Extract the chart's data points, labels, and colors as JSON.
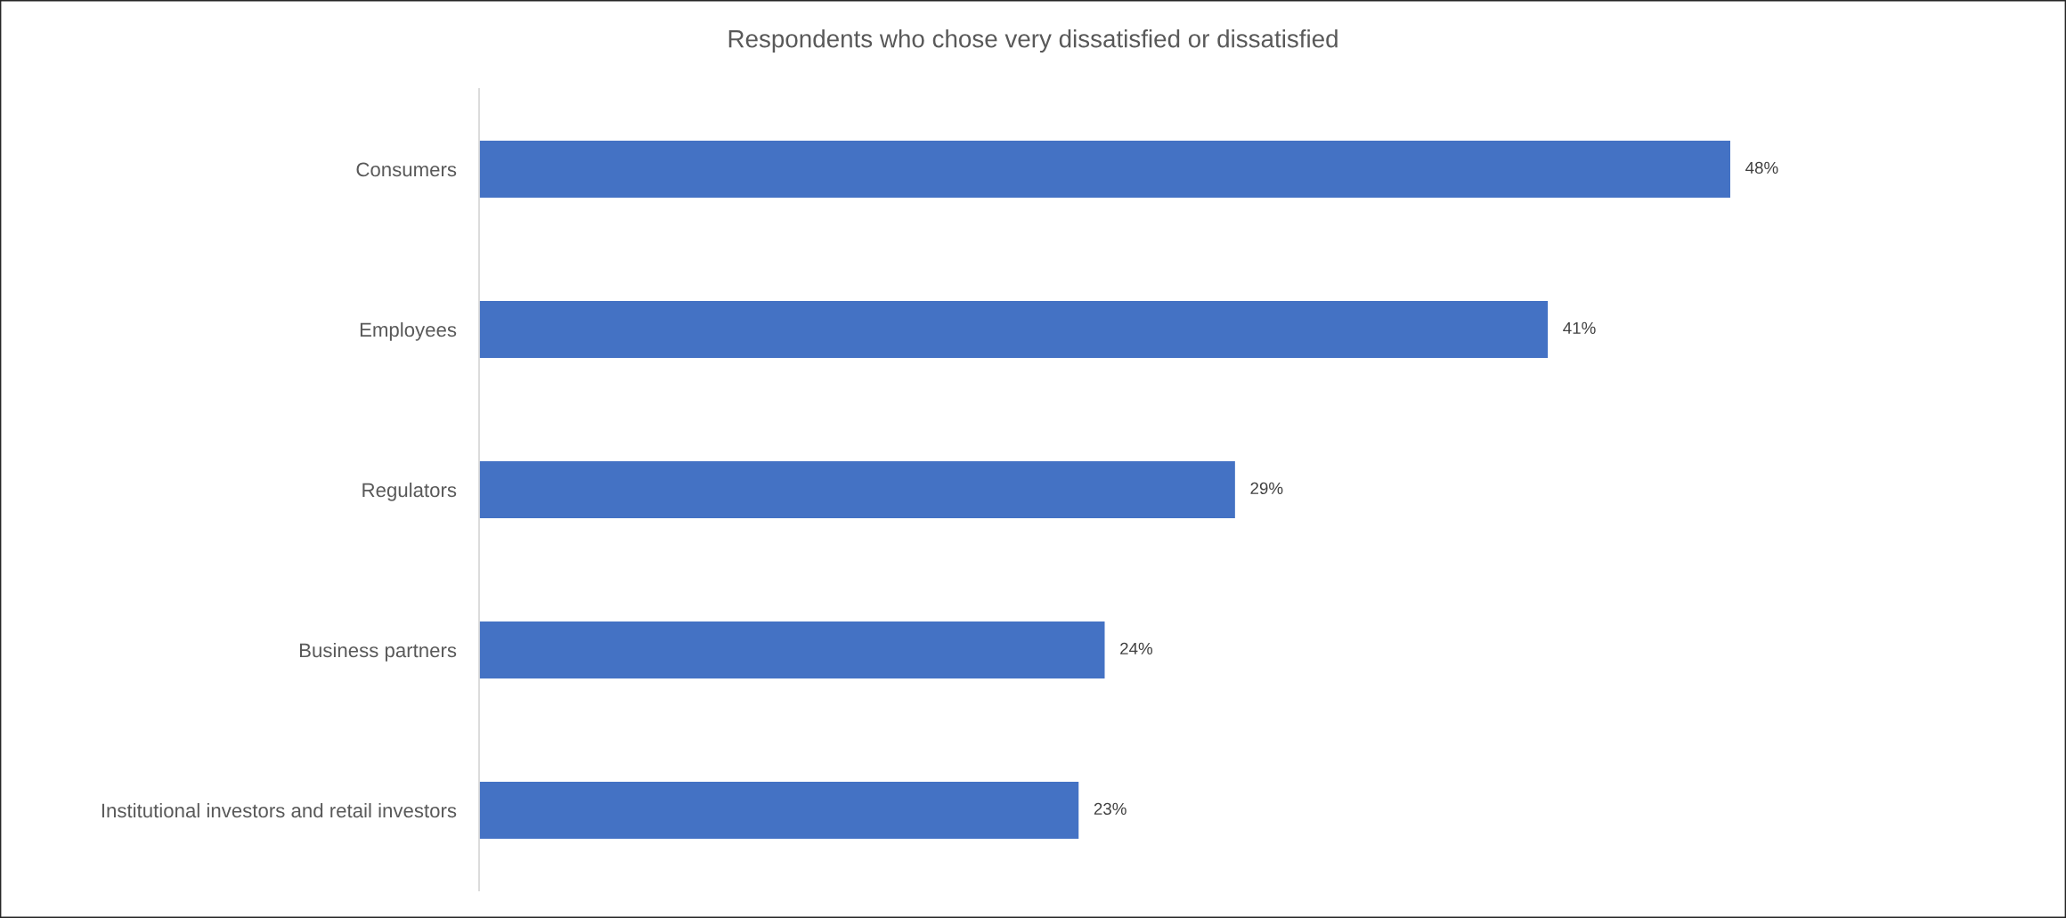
{
  "chart_data": {
    "type": "bar",
    "orientation": "horizontal",
    "title": "Respondents who chose very dissatisfied or dissatisfied",
    "categories": [
      "Consumers",
      "Employees",
      "Regulators",
      "Business partners",
      "Institutional investors and retail investors"
    ],
    "values": [
      48,
      41,
      29,
      24,
      23
    ],
    "value_labels": [
      "48%",
      "41%",
      "29%",
      "24%",
      "23%"
    ],
    "color": "#4472c4",
    "tick_labels": "y",
    "grid": false,
    "legend": false
  }
}
